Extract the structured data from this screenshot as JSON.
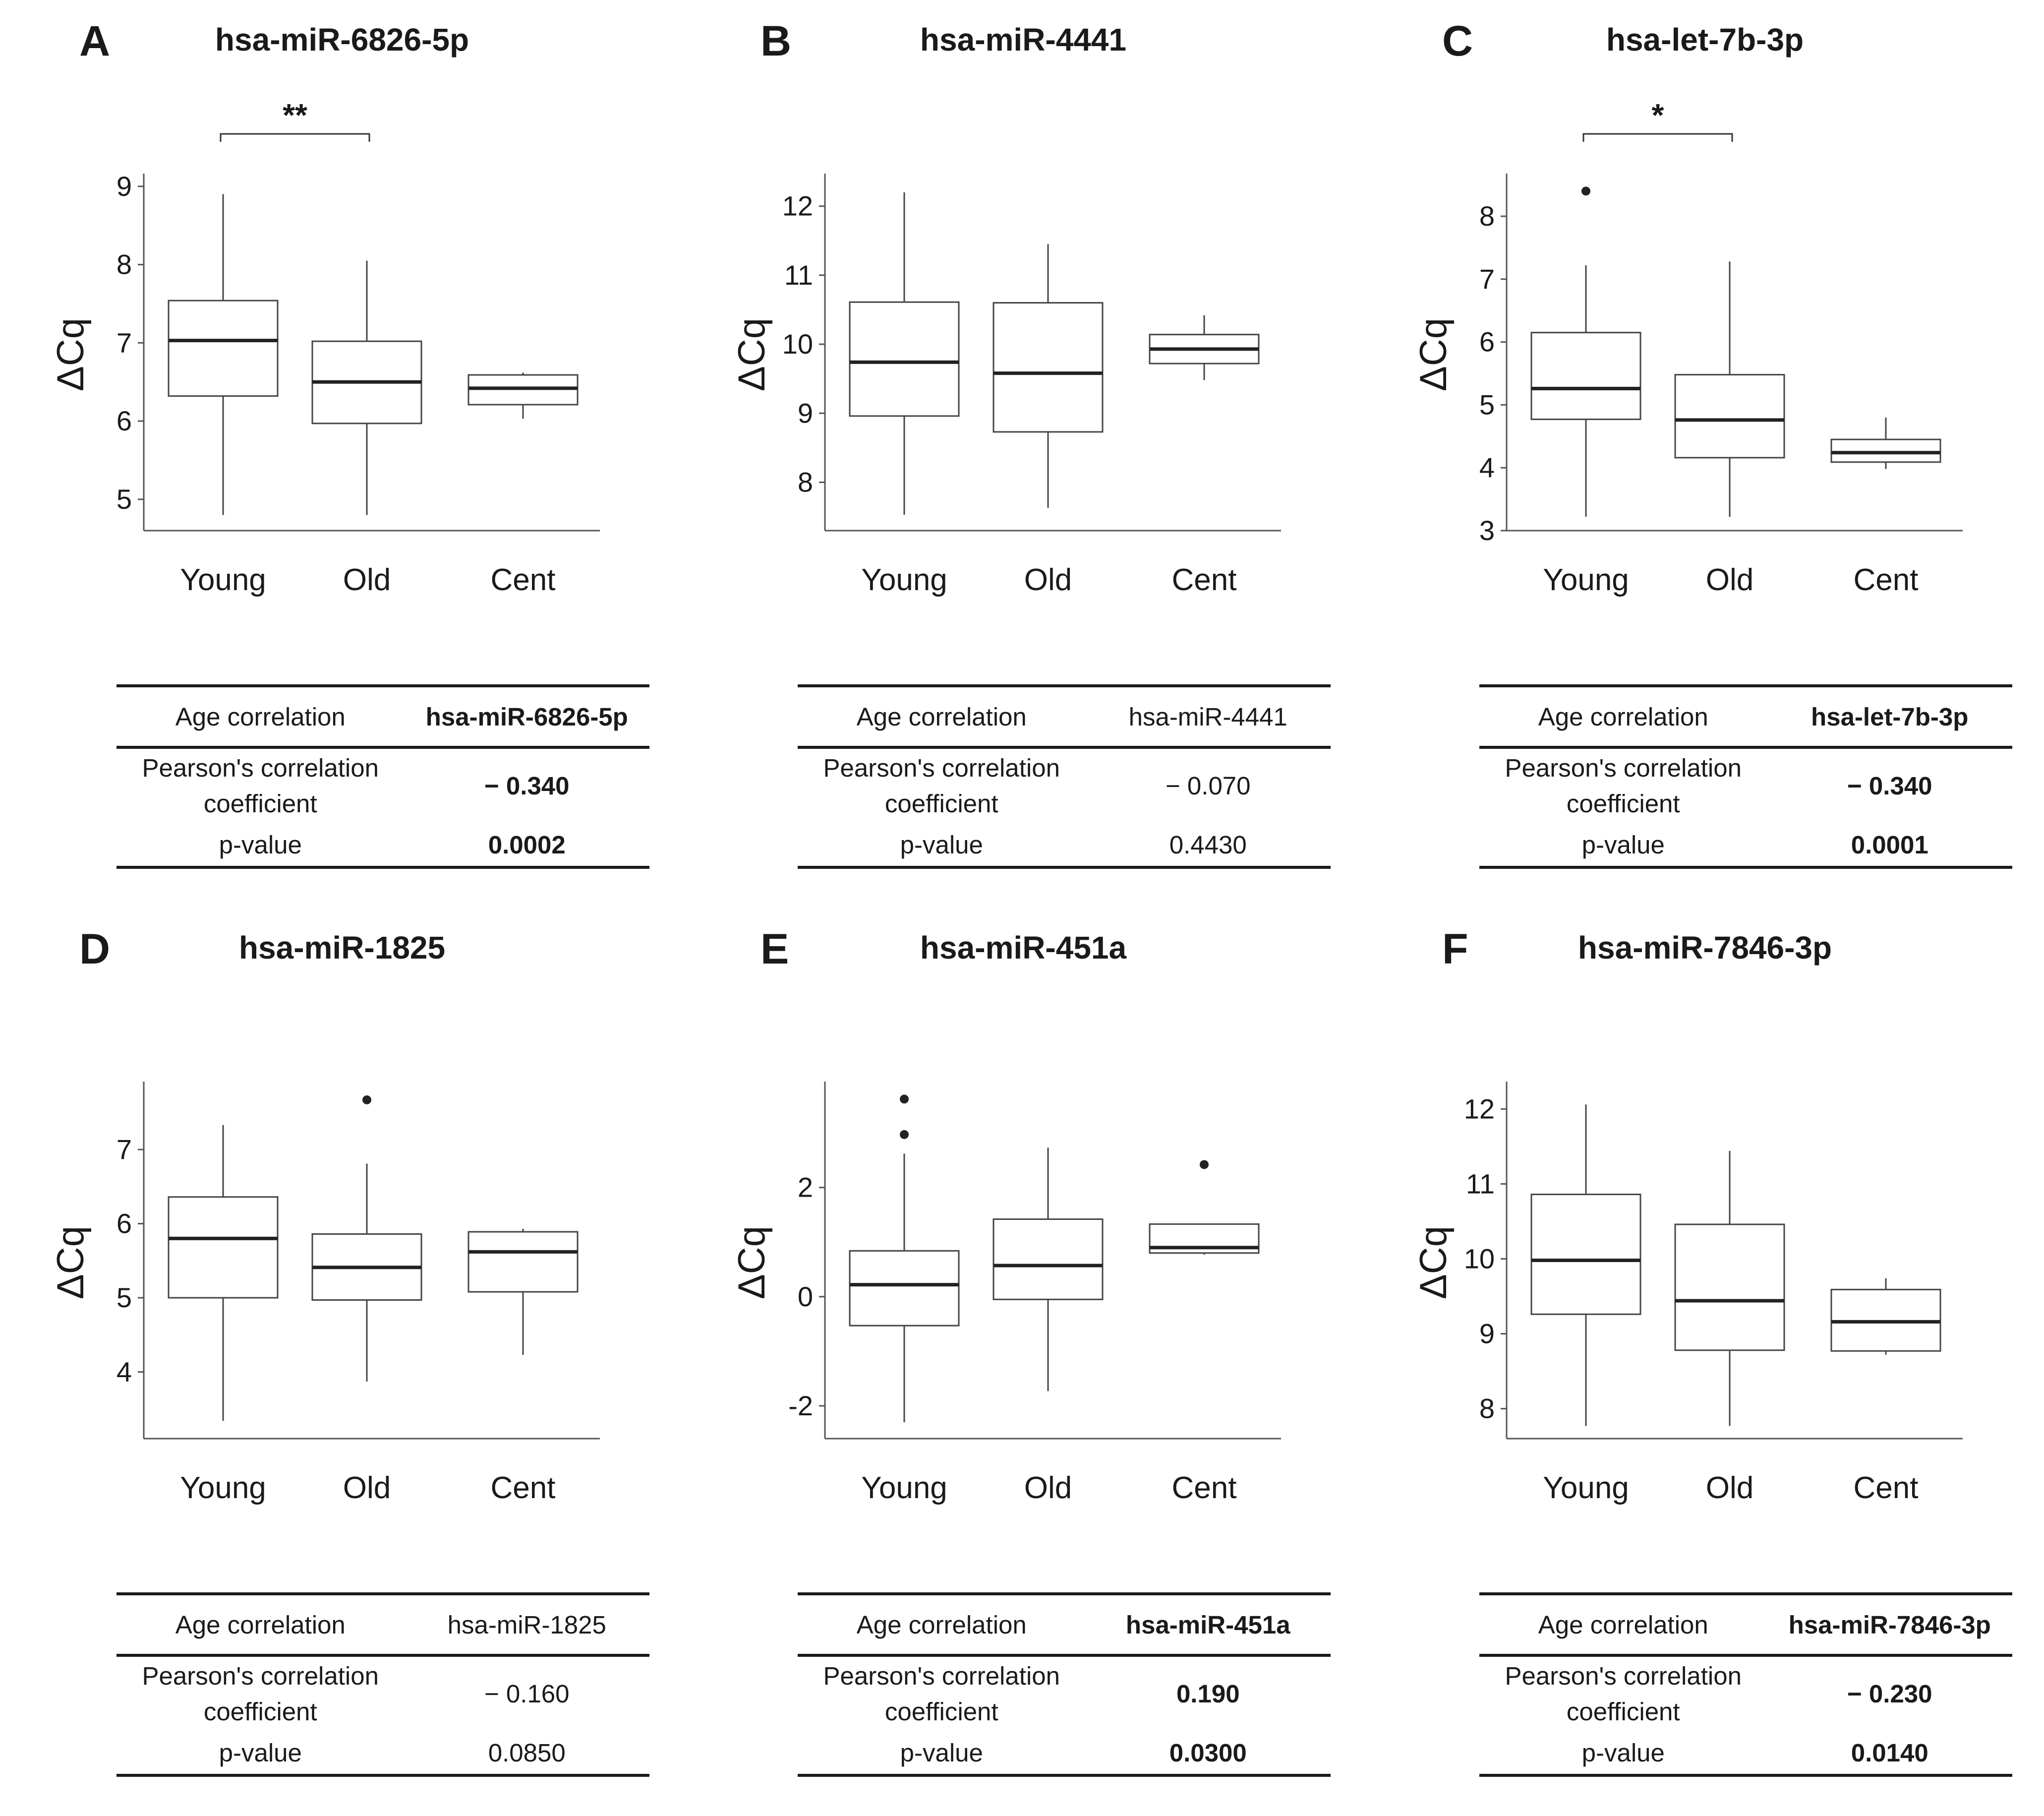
{
  "chart_data": [
    {
      "panel": "A",
      "type": "box",
      "title": "hsa-miR-6826-5p",
      "ylabel": "ΔCq",
      "ylim": [
        4.6,
        9.1
      ],
      "yticks": [
        5,
        6,
        7,
        8,
        9
      ],
      "categories": [
        "Young",
        "Old",
        "Cent"
      ],
      "boxes": [
        {
          "group": "Young",
          "whisker_low": 4.8,
          "q1": 6.32,
          "median": 7.03,
          "q3": 7.54,
          "whisker_high": 8.9,
          "outliers": []
        },
        {
          "group": "Old",
          "whisker_low": 4.8,
          "q1": 5.97,
          "median": 6.5,
          "q3": 7.02,
          "whisker_high": 8.05,
          "outliers": []
        },
        {
          "group": "Cent",
          "whisker_low": 6.03,
          "q1": 6.21,
          "median": 6.42,
          "q3": 6.59,
          "whisker_high": 6.62,
          "outliers": []
        }
      ],
      "significance": {
        "groups": [
          "Young",
          "Old"
        ],
        "label": "**"
      },
      "table": {
        "header": "Age correlation",
        "mirna": "hsa-miR-6826-5p",
        "coef_label_1": "Pearson's correlation",
        "coef_label_2": "coefficient",
        "coef": "− 0.340",
        "p_label": "p-value",
        "p": "0.0002",
        "bold": true
      }
    },
    {
      "panel": "B",
      "type": "box",
      "title": "hsa-miR-4441",
      "ylabel": "ΔCq",
      "ylim": [
        7.3,
        12.4
      ],
      "yticks": [
        8,
        9,
        10,
        11,
        12
      ],
      "categories": [
        "Young",
        "Old",
        "Cent"
      ],
      "boxes": [
        {
          "group": "Young",
          "whisker_low": 7.53,
          "q1": 8.96,
          "median": 9.74,
          "q3": 10.61,
          "whisker_high": 12.2,
          "outliers": []
        },
        {
          "group": "Old",
          "whisker_low": 7.63,
          "q1": 8.73,
          "median": 9.58,
          "q3": 10.6,
          "whisker_high": 11.45,
          "outliers": []
        },
        {
          "group": "Cent",
          "whisker_low": 9.48,
          "q1": 9.72,
          "median": 9.93,
          "q3": 10.14,
          "whisker_high": 10.42,
          "outliers": []
        }
      ],
      "significance": null,
      "table": {
        "header": "Age correlation",
        "mirna": "hsa-miR-4441",
        "coef_label_1": "Pearson's correlation",
        "coef_label_2": "coefficient",
        "coef": "− 0.070",
        "p_label": "p-value",
        "p": "0.4430",
        "bold": false
      }
    },
    {
      "panel": "C",
      "type": "box",
      "title": "hsa-let-7b-3p",
      "ylabel": "ΔCq",
      "ylim": [
        3.0,
        8.6
      ],
      "yticks": [
        3,
        4,
        5,
        6,
        7,
        8
      ],
      "categories": [
        "Young",
        "Old",
        "Cent"
      ],
      "boxes": [
        {
          "group": "Young",
          "whisker_low": 3.22,
          "q1": 4.77,
          "median": 5.26,
          "q3": 6.15,
          "whisker_high": 7.22,
          "outliers": [
            8.4
          ]
        },
        {
          "group": "Old",
          "whisker_low": 3.22,
          "q1": 4.16,
          "median": 4.76,
          "q3": 5.48,
          "whisker_high": 7.28,
          "outliers": []
        },
        {
          "group": "Cent",
          "whisker_low": 3.98,
          "q1": 4.09,
          "median": 4.24,
          "q3": 4.45,
          "whisker_high": 4.8,
          "outliers": []
        }
      ],
      "significance": {
        "groups": [
          "Young",
          "Old"
        ],
        "label": "*"
      },
      "table": {
        "header": "Age correlation",
        "mirna": "hsa-let-7b-3p",
        "coef_label_1": "Pearson's correlation",
        "coef_label_2": "coefficient",
        "coef": "− 0.340",
        "p_label": "p-value",
        "p": "0.0001",
        "bold": true
      }
    },
    {
      "panel": "D",
      "type": "box",
      "title": "hsa-miR-1825",
      "ylabel": "ΔCq",
      "ylim": [
        3.1,
        7.85
      ],
      "yticks": [
        4,
        5,
        6,
        7
      ],
      "categories": [
        "Young",
        "Old",
        "Cent"
      ],
      "boxes": [
        {
          "group": "Young",
          "whisker_low": 3.34,
          "q1": 5.0,
          "median": 5.8,
          "q3": 6.36,
          "whisker_high": 7.33,
          "outliers": []
        },
        {
          "group": "Old",
          "whisker_low": 3.87,
          "q1": 4.97,
          "median": 5.41,
          "q3": 5.86,
          "whisker_high": 6.81,
          "outliers": [
            7.67
          ]
        },
        {
          "group": "Cent",
          "whisker_low": 4.23,
          "q1": 5.08,
          "median": 5.62,
          "q3": 5.89,
          "whisker_high": 5.93,
          "outliers": []
        }
      ],
      "significance": null,
      "table": {
        "header": "Age correlation",
        "mirna": "hsa-miR-1825",
        "coef_label_1": "Pearson's correlation",
        "coef_label_2": "coefficient",
        "coef": "− 0.160",
        "p_label": "p-value",
        "p": "0.0850",
        "bold": false
      }
    },
    {
      "panel": "E",
      "type": "box",
      "title": "hsa-miR-451a",
      "ylabel": "ΔCq",
      "ylim": [
        -2.6,
        3.85
      ],
      "yticks": [
        -2,
        0,
        2
      ],
      "categories": [
        "Young",
        "Old",
        "Cent"
      ],
      "boxes": [
        {
          "group": "Young",
          "whisker_low": -2.3,
          "q1": -0.53,
          "median": 0.22,
          "q3": 0.84,
          "whisker_high": 2.62,
          "outliers": [
            2.97,
            3.62
          ]
        },
        {
          "group": "Old",
          "whisker_low": -1.73,
          "q1": -0.05,
          "median": 0.57,
          "q3": 1.42,
          "whisker_high": 2.73,
          "outliers": []
        },
        {
          "group": "Cent",
          "whisker_low": 0.77,
          "q1": 0.8,
          "median": 0.9,
          "q3": 1.33,
          "whisker_high": 1.33,
          "outliers": [
            2.42
          ]
        }
      ],
      "significance": null,
      "table": {
        "header": "Age correlation",
        "mirna": "hsa-miR-451a",
        "coef_label_1": "Pearson's correlation",
        "coef_label_2": "coefficient",
        "coef": "0.190",
        "p_label": "p-value",
        "p": "0.0300",
        "bold": true
      }
    },
    {
      "panel": "F",
      "type": "box",
      "title": "hsa-miR-7846-3p",
      "ylabel": "ΔCq",
      "ylim": [
        7.6,
        12.3
      ],
      "yticks": [
        8,
        9,
        10,
        11,
        12
      ],
      "categories": [
        "Young",
        "Old",
        "Cent"
      ],
      "boxes": [
        {
          "group": "Young",
          "whisker_low": 7.77,
          "q1": 9.26,
          "median": 9.98,
          "q3": 10.86,
          "whisker_high": 12.06,
          "outliers": []
        },
        {
          "group": "Old",
          "whisker_low": 7.77,
          "q1": 8.78,
          "median": 9.44,
          "q3": 10.46,
          "whisker_high": 11.44,
          "outliers": []
        },
        {
          "group": "Cent",
          "whisker_low": 8.72,
          "q1": 8.77,
          "median": 9.16,
          "q3": 9.59,
          "whisker_high": 9.74,
          "outliers": []
        }
      ],
      "significance": null,
      "table": {
        "header": "Age correlation",
        "mirna": "hsa-miR-7846-3p",
        "coef_label_1": "Pearson's correlation",
        "coef_label_2": "coefficient",
        "coef": "− 0.230",
        "p_label": "p-value",
        "p": "0.0140",
        "bold": true
      }
    }
  ]
}
